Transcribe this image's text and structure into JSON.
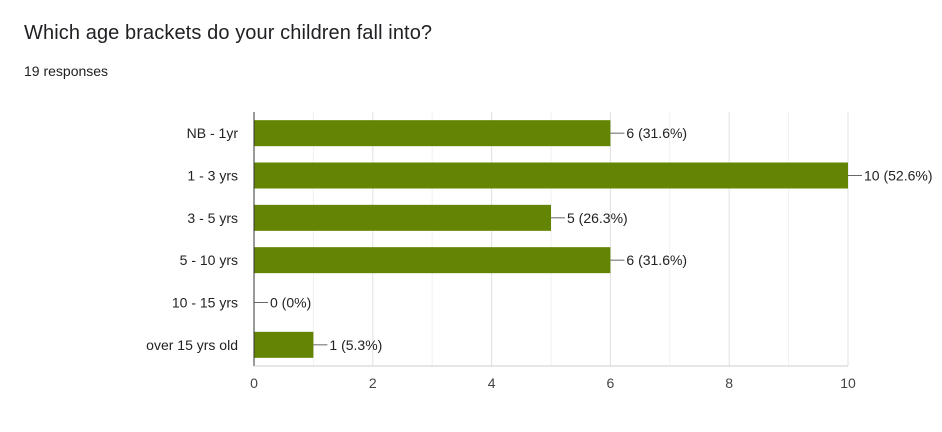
{
  "question": {
    "title": "Which age brackets do your children fall into?",
    "responses": "19 responses"
  },
  "colors": {
    "bar": "#648403",
    "grid": "#e6e6e6",
    "axis": "#333333",
    "text": "#202124"
  },
  "chart_data": {
    "type": "bar",
    "orientation": "horizontal",
    "categories": [
      "NB - 1yr",
      "1 - 3 yrs",
      "3 - 5 yrs",
      "5 - 10 yrs",
      "10 - 15 yrs",
      "over 15 yrs old"
    ],
    "values": [
      6,
      10,
      5,
      6,
      0,
      1
    ],
    "data_labels": [
      "6 (31.6%)",
      "10 (52.6%)",
      "5 (26.3%)",
      "6 (31.6%)",
      "0 (0%)",
      "1 (5.3%)"
    ],
    "xlim": [
      0,
      10
    ],
    "x_ticks": [
      "0",
      "2",
      "4",
      "6",
      "8",
      "10"
    ],
    "grid": true,
    "legend": "none"
  }
}
